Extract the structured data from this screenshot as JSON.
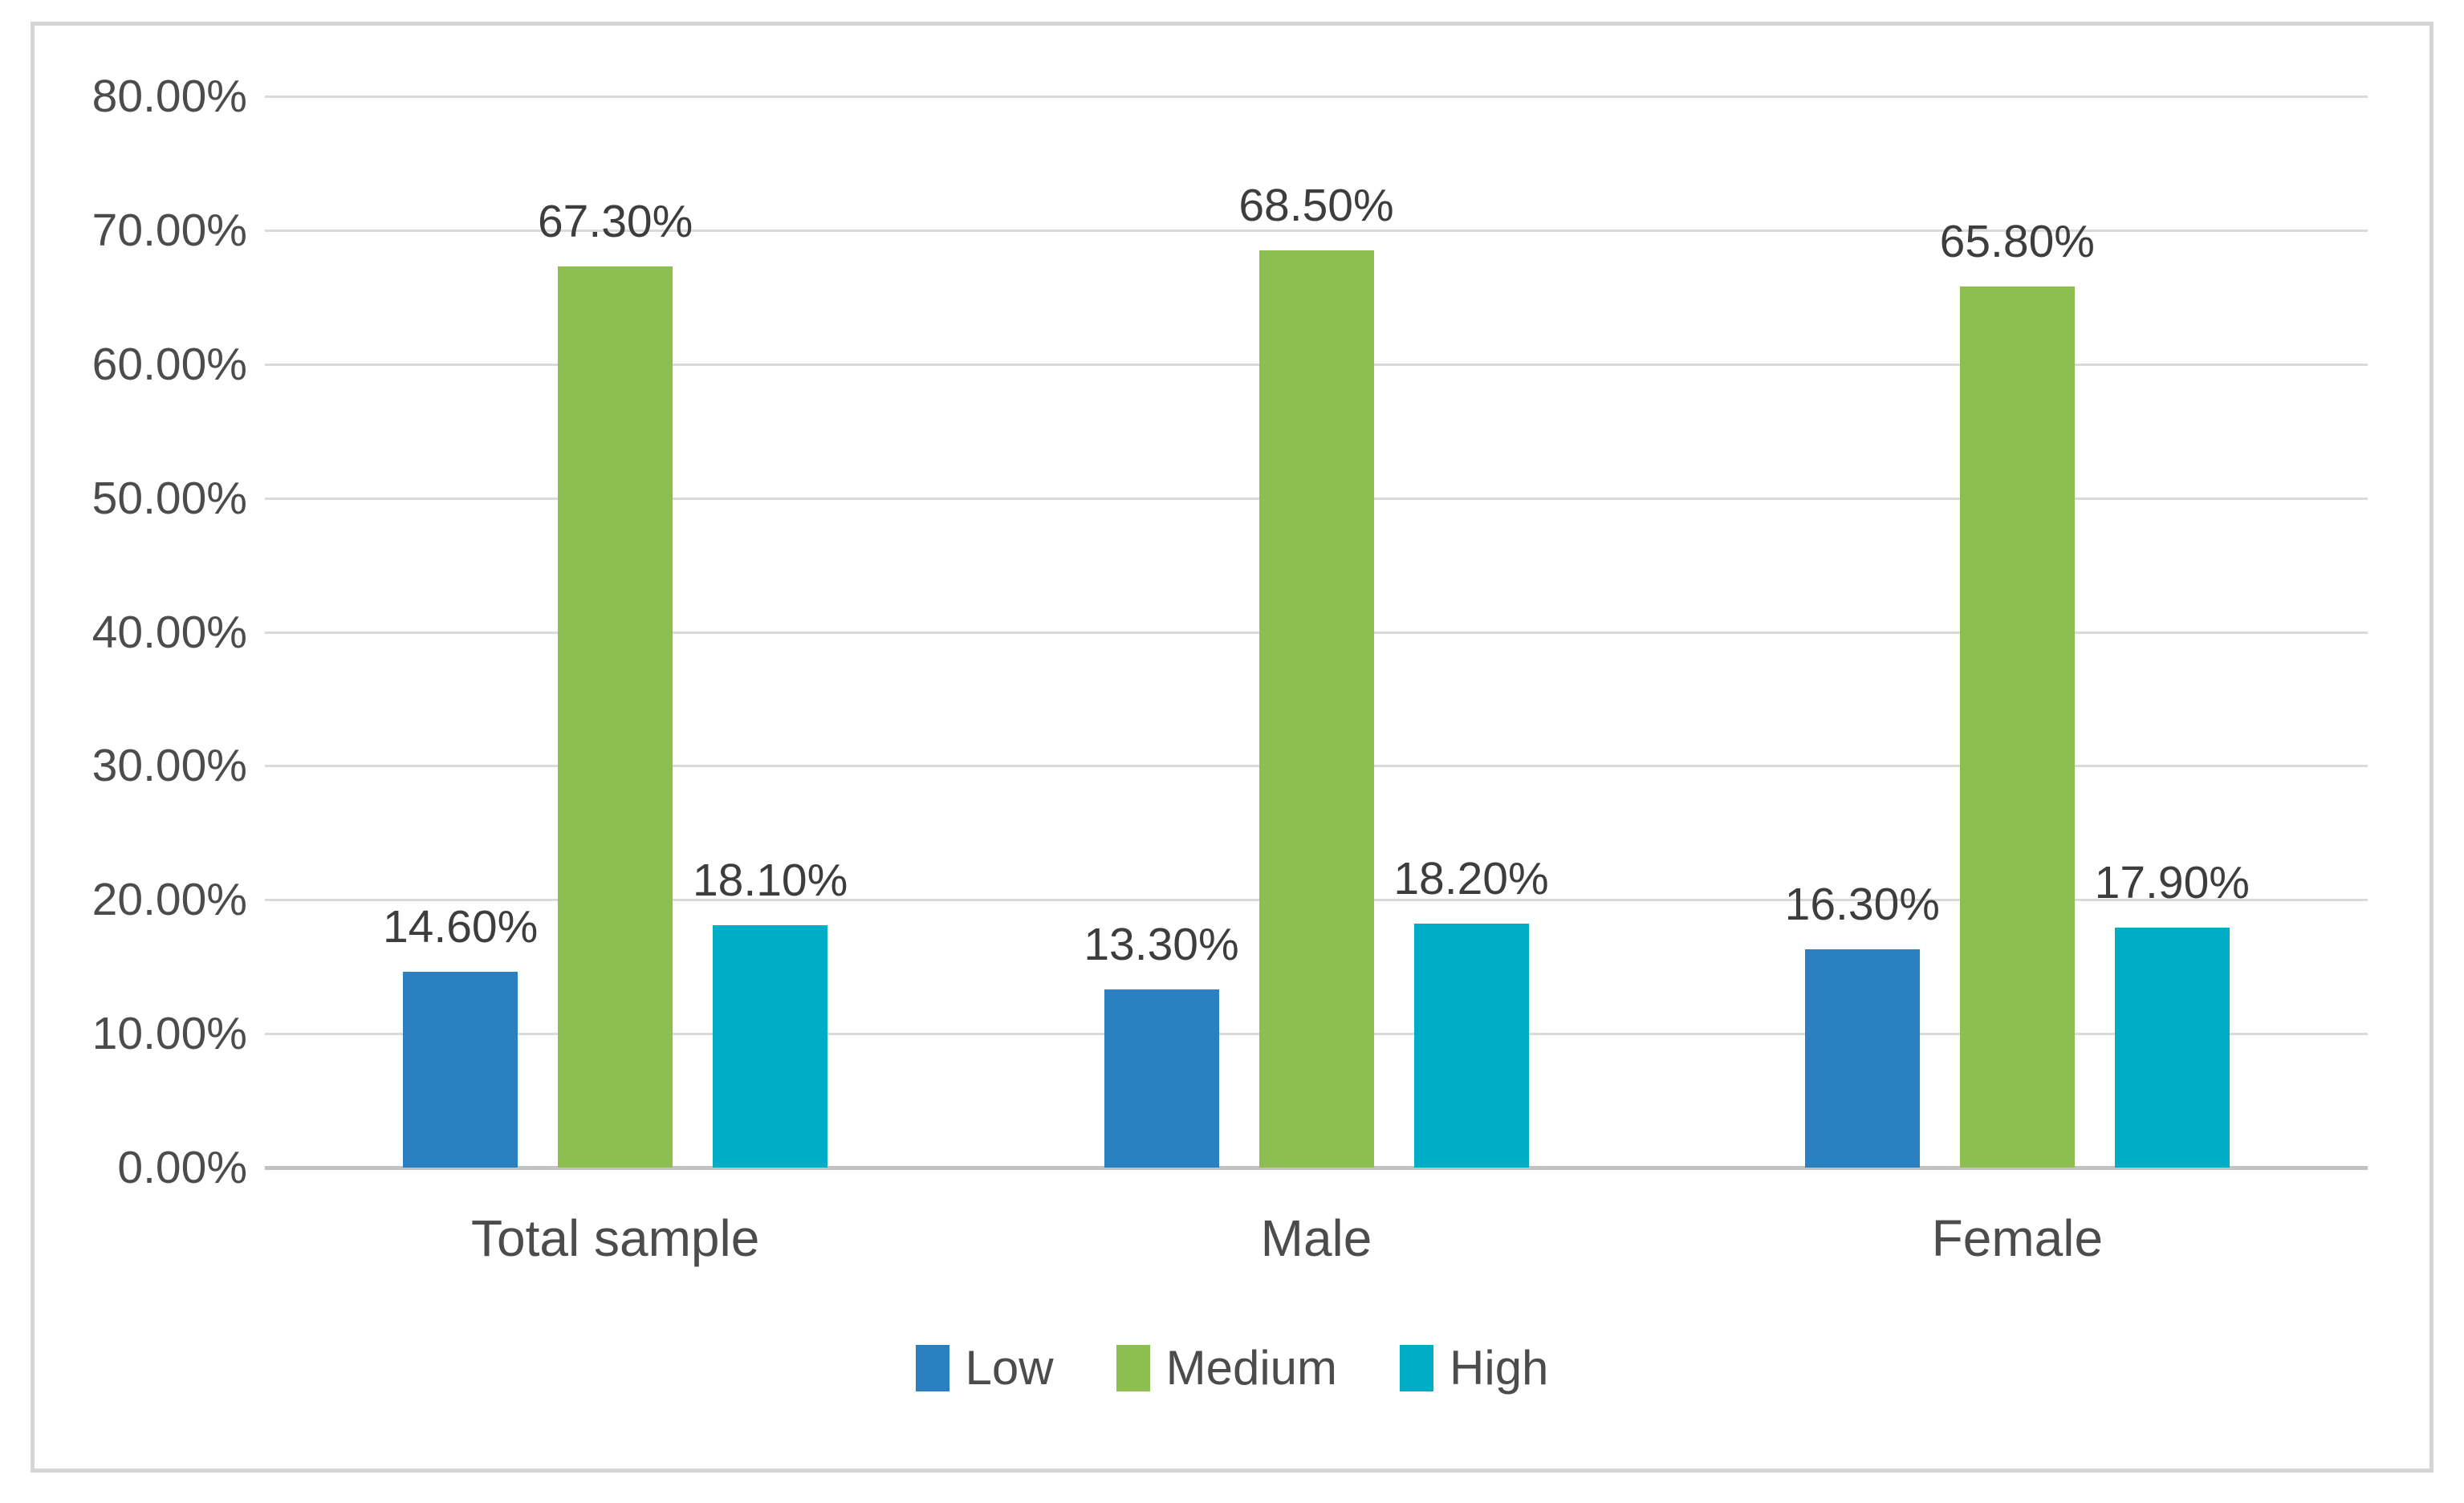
{
  "chart_data": {
    "type": "bar",
    "title": "",
    "categories": [
      "Total sample",
      "Male",
      "Female"
    ],
    "series": [
      {
        "name": "Low",
        "color": "#2a80c0",
        "values": [
          14.6,
          13.3,
          16.3
        ],
        "data_labels": [
          "14.60%",
          "13.30%",
          "16.30%"
        ]
      },
      {
        "name": "Medium",
        "color": "#8cbf50",
        "values": [
          67.3,
          68.5,
          65.8
        ],
        "data_labels": [
          "67.30%",
          "68.50%",
          "65.80%"
        ]
      },
      {
        "name": "High",
        "color": "#00adc6",
        "values": [
          18.1,
          18.2,
          17.9
        ],
        "data_labels": [
          "18.10%",
          "18.20%",
          "17.90%"
        ]
      }
    ],
    "y_axis": {
      "min": 0,
      "max": 80,
      "step": 10,
      "tick_labels": [
        "0.00%",
        "10.00%",
        "20.00%",
        "30.00%",
        "40.00%",
        "50.00%",
        "60.00%",
        "70.00%",
        "80.00%"
      ]
    },
    "legend": {
      "position": "bottom",
      "items": [
        "Low",
        "Medium",
        "High"
      ]
    },
    "grid": true,
    "styles": {
      "gridline_color": "#dadada",
      "axis_line_color": "#c3c1c1",
      "text_color": "#4c4c4c",
      "data_label_color": "#3d3d3d",
      "border_color": "#d6d4d4",
      "background": "#ffffff"
    }
  }
}
